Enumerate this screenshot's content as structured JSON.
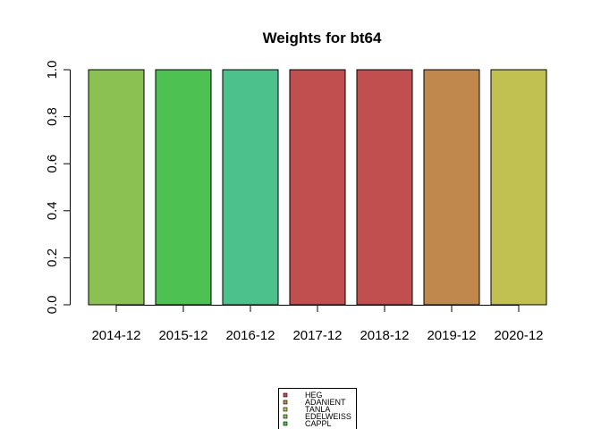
{
  "chart_data": {
    "type": "bar",
    "title": "Weights for bt64",
    "xlabel": "",
    "ylabel": "",
    "categories": [
      "2014-12",
      "2015-12",
      "2016-12",
      "2017-12",
      "2018-12",
      "2019-12",
      "2020-12"
    ],
    "values": [
      1.0,
      1.0,
      1.0,
      1.0,
      1.0,
      1.0,
      1.0
    ],
    "bar_colors": [
      "#8BC152",
      "#4DC152",
      "#4DC18B",
      "#C14F4F",
      "#C14F4F",
      "#C1884D",
      "#C1C152"
    ],
    "ylim": [
      0,
      1
    ],
    "yticks": [
      "0.0",
      "0.2",
      "0.4",
      "0.6",
      "0.8",
      "1.0"
    ],
    "grid": false,
    "legend": {
      "placement": "bottom-center",
      "entries": [
        {
          "label": "HEG",
          "color": "#C14F4F"
        },
        {
          "label": "ADANIENT",
          "color": "#C1884D"
        },
        {
          "label": "TANLA",
          "color": "#C1C152"
        },
        {
          "label": "EDELWEISS",
          "color": "#8BC152"
        },
        {
          "label": "CAPPL",
          "color": "#4DC152"
        }
      ]
    }
  }
}
